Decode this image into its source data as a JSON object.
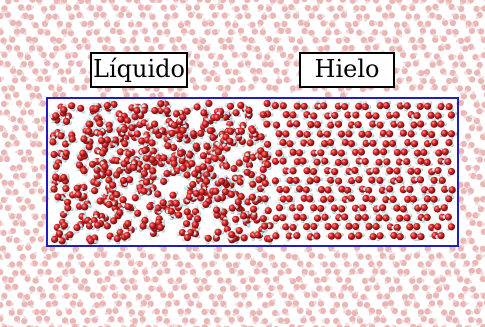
{
  "labels": {
    "liquid": "Líquido",
    "ice": "Hielo"
  },
  "colors": {
    "oxygen": "#c81e1e",
    "oxygen_dark": "#7a0f0f",
    "hydrogen": "#d9e8ee",
    "periodic_image": "#e7a9a9",
    "box_outline": "#1f1fbf",
    "background": "#ffffff"
  }
}
